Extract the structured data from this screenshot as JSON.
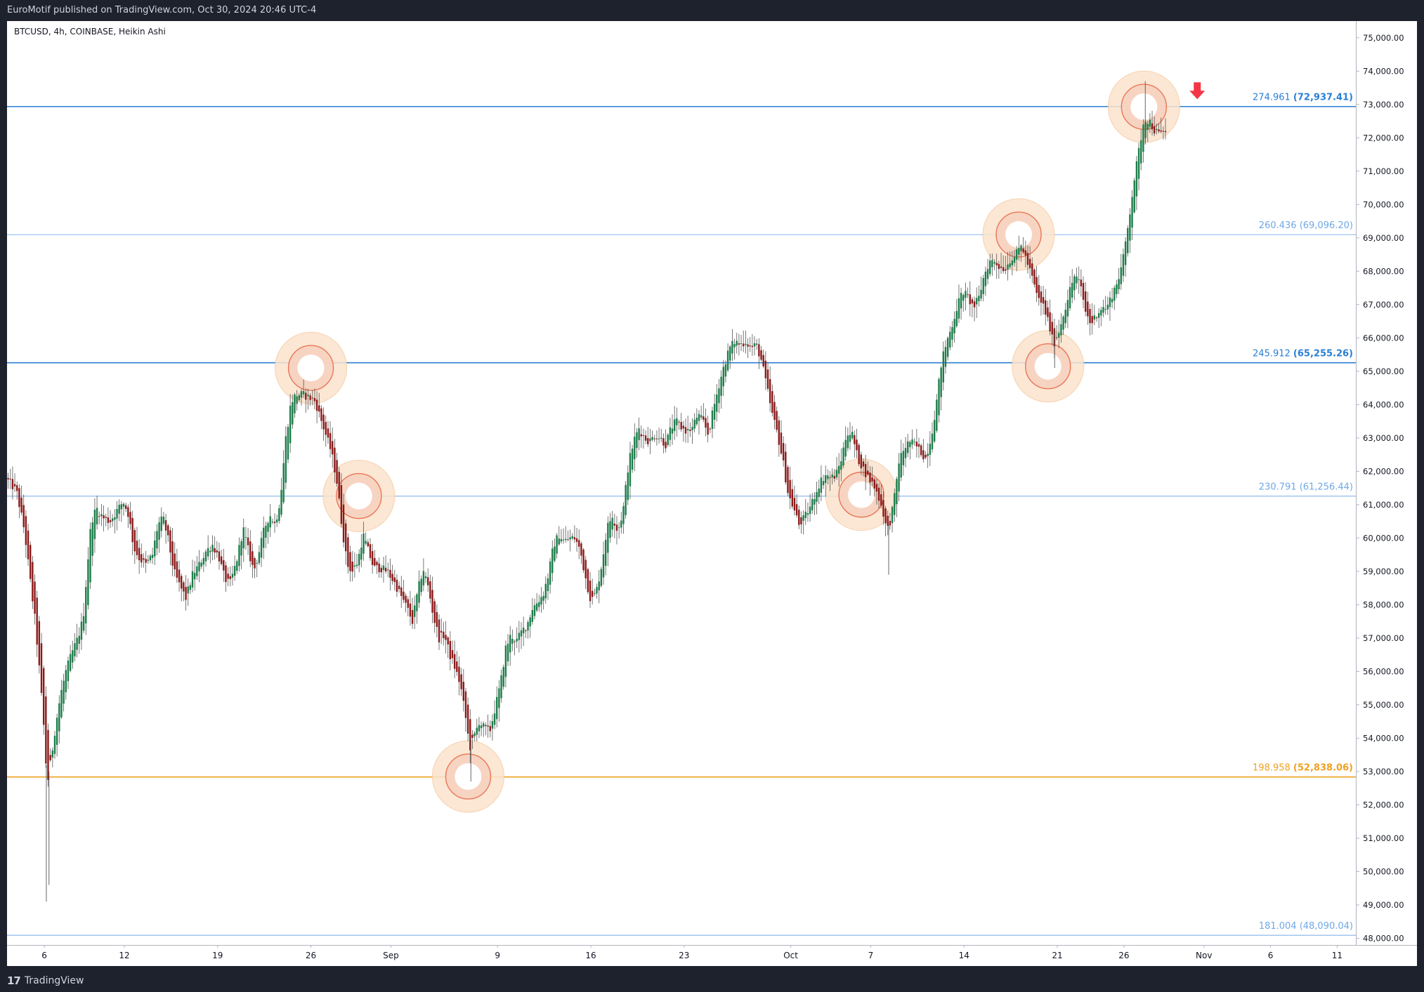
{
  "header": {
    "publish_line": "EuroMotif published on TradingView.com, Oct 30, 2024 20:46 UTC-4"
  },
  "symbol": {
    "title": "BTCUSD, 4h, COINBASE, Heikin Ashi"
  },
  "footer": {
    "logo_mark": "17",
    "logo_text": "TradingView"
  },
  "colors": {
    "up": "#26a69a",
    "up_body": "#1e7d4a",
    "down": "#8b1a1a",
    "fib_line": "#2a7fd4",
    "fib_light": "#6fa8e6",
    "orange": "#f0a020",
    "circle_outer": "#fbe3cd",
    "circle_ring": "#e86a4a"
  },
  "chart_data": {
    "type": "candlestick",
    "title": "BTCUSD, 4h, COINBASE, Heikin Ashi",
    "ylim": [
      47800,
      75500
    ],
    "y_ticks": [
      "48,000.00",
      "49,000.00",
      "50,000.00",
      "51,000.00",
      "52,000.00",
      "53,000.00",
      "54,000.00",
      "55,000.00",
      "56,000.00",
      "57,000.00",
      "58,000.00",
      "59,000.00",
      "60,000.00",
      "61,000.00",
      "62,000.00",
      "63,000.00",
      "64,000.00",
      "65,000.00",
      "66,000.00",
      "67,000.00",
      "68,000.00",
      "69,000.00",
      "70,000.00",
      "71,000.00",
      "72,000.00",
      "73,000.00",
      "74,000.00",
      "75,000.00"
    ],
    "x_ticks": [
      {
        "label": "6",
        "day": 6
      },
      {
        "label": "12",
        "day": 12
      },
      {
        "label": "19",
        "day": 19
      },
      {
        "label": "26",
        "day": 26
      },
      {
        "label": "Sep",
        "day": 32
      },
      {
        "label": "9",
        "day": 40
      },
      {
        "label": "16",
        "day": 47
      },
      {
        "label": "23",
        "day": 54
      },
      {
        "label": "Oct",
        "day": 62
      },
      {
        "label": "7",
        "day": 68
      },
      {
        "label": "14",
        "day": 75
      },
      {
        "label": "21",
        "day": 82
      },
      {
        "label": "26",
        "day": 87
      },
      {
        "label": "Nov",
        "day": 93
      },
      {
        "label": "6",
        "day": 98
      },
      {
        "label": "11",
        "day": 103
      }
    ],
    "xlim_days": [
      3.2,
      104.4
    ],
    "fib_levels": [
      {
        "ratio": "274.961",
        "price": 72937.41,
        "price_label": "(72,937.41)",
        "style": "strong",
        "color": "#2a7fd4"
      },
      {
        "ratio": "260.436",
        "price": 69096.2,
        "price_label": "(69,096.20)",
        "style": "light",
        "color": "#6fa8e6"
      },
      {
        "ratio": "245.912",
        "price": 65255.26,
        "price_label": "(65,255.26)",
        "style": "strong",
        "color": "#2a7fd4"
      },
      {
        "ratio": "230.791",
        "price": 61256.44,
        "price_label": "(61,256.44)",
        "style": "light",
        "color": "#6fa8e6"
      },
      {
        "ratio": "198.958",
        "price": 52838.06,
        "price_label": "(52,838.06)",
        "style": "strong",
        "color": "#f0a020"
      },
      {
        "ratio": "181.004",
        "price": 48090.04,
        "price_label": "(48,090.04)",
        "style": "light",
        "color": "#6fa8e6"
      }
    ],
    "markers": [
      {
        "day": 26.0,
        "price": 65100
      },
      {
        "day": 29.6,
        "price": 61260
      },
      {
        "day": 37.8,
        "price": 52850
      },
      {
        "day": 67.3,
        "price": 61300
      },
      {
        "day": 79.1,
        "price": 69100
      },
      {
        "day": 81.3,
        "price": 65150
      },
      {
        "day": 88.5,
        "price": 72930
      }
    ],
    "arrow": {
      "day": 92.5,
      "price": 73200,
      "direction": "down"
    },
    "path": [
      [
        3.2,
        61800
      ],
      [
        4.0,
        61400
      ],
      [
        4.6,
        60200
      ],
      [
        5.0,
        58800
      ],
      [
        5.4,
        57500
      ],
      [
        5.7,
        56100
      ],
      [
        6.0,
        54600
      ],
      [
        6.3,
        52600
      ],
      [
        6.6,
        53400
      ],
      [
        6.9,
        54300
      ],
      [
        7.3,
        55300
      ],
      [
        7.7,
        56000
      ],
      [
        8.1,
        56500
      ],
      [
        8.6,
        57000
      ],
      [
        9.0,
        57600
      ],
      [
        9.3,
        59100
      ],
      [
        9.6,
        60500
      ],
      [
        10.0,
        60900
      ],
      [
        10.5,
        60600
      ],
      [
        11.0,
        60500
      ],
      [
        11.5,
        60800
      ],
      [
        12.0,
        61100
      ],
      [
        12.4,
        60700
      ],
      [
        12.8,
        59700
      ],
      [
        13.2,
        59400
      ],
      [
        13.7,
        59200
      ],
      [
        14.2,
        59500
      ],
      [
        14.6,
        60400
      ],
      [
        15.0,
        60600
      ],
      [
        15.4,
        59900
      ],
      [
        15.8,
        59000
      ],
      [
        16.2,
        58600
      ],
      [
        16.7,
        58200
      ],
      [
        17.2,
        58900
      ],
      [
        17.7,
        59200
      ],
      [
        18.2,
        59600
      ],
      [
        18.7,
        59800
      ],
      [
        19.2,
        59400
      ],
      [
        19.6,
        58800
      ],
      [
        20.0,
        58600
      ],
      [
        20.5,
        59300
      ],
      [
        21.0,
        60300
      ],
      [
        21.4,
        59600
      ],
      [
        21.8,
        59000
      ],
      [
        22.2,
        59600
      ],
      [
        22.6,
        60300
      ],
      [
        23.0,
        60700
      ],
      [
        23.4,
        60400
      ],
      [
        23.8,
        61200
      ],
      [
        24.2,
        63000
      ],
      [
        24.6,
        64100
      ],
      [
        25.0,
        64300
      ],
      [
        25.5,
        64300
      ],
      [
        26.0,
        64200
      ],
      [
        26.4,
        64100
      ],
      [
        26.8,
        63600
      ],
      [
        27.2,
        63100
      ],
      [
        27.6,
        62600
      ],
      [
        28.0,
        61800
      ],
      [
        28.4,
        60400
      ],
      [
        28.8,
        59200
      ],
      [
        29.2,
        59000
      ],
      [
        29.6,
        59300
      ],
      [
        30.0,
        60100
      ],
      [
        30.4,
        59600
      ],
      [
        30.8,
        59100
      ],
      [
        31.3,
        59100
      ],
      [
        31.8,
        59000
      ],
      [
        32.3,
        58700
      ],
      [
        32.8,
        58300
      ],
      [
        33.3,
        57900
      ],
      [
        33.7,
        57500
      ],
      [
        34.1,
        58400
      ],
      [
        34.5,
        59100
      ],
      [
        34.9,
        58500
      ],
      [
        35.3,
        57600
      ],
      [
        35.7,
        57000
      ],
      [
        36.1,
        57100
      ],
      [
        36.5,
        56500
      ],
      [
        36.9,
        56100
      ],
      [
        37.3,
        55600
      ],
      [
        37.7,
        54600
      ],
      [
        38.0,
        53700
      ],
      [
        38.3,
        54000
      ],
      [
        38.7,
        54500
      ],
      [
        39.1,
        54300
      ],
      [
        39.5,
        54200
      ],
      [
        39.9,
        54900
      ],
      [
        40.3,
        55600
      ],
      [
        40.7,
        56700
      ],
      [
        41.1,
        57100
      ],
      [
        41.5,
        56900
      ],
      [
        41.9,
        57200
      ],
      [
        42.3,
        57400
      ],
      [
        42.7,
        57900
      ],
      [
        43.1,
        58100
      ],
      [
        43.5,
        58300
      ],
      [
        43.9,
        58900
      ],
      [
        44.3,
        59800
      ],
      [
        44.7,
        60100
      ],
      [
        45.1,
        59900
      ],
      [
        45.5,
        60000
      ],
      [
        45.9,
        60000
      ],
      [
        46.3,
        59600
      ],
      [
        46.7,
        58800
      ],
      [
        47.1,
        58100
      ],
      [
        47.5,
        58400
      ],
      [
        47.9,
        59200
      ],
      [
        48.3,
        60300
      ],
      [
        48.7,
        60700
      ],
      [
        49.1,
        60200
      ],
      [
        49.5,
        60800
      ],
      [
        49.9,
        62200
      ],
      [
        50.3,
        62900
      ],
      [
        50.7,
        63300
      ],
      [
        51.1,
        63000
      ],
      [
        51.5,
        62900
      ],
      [
        51.9,
        63100
      ],
      [
        52.3,
        63000
      ],
      [
        52.7,
        62800
      ],
      [
        53.1,
        63300
      ],
      [
        53.5,
        63500
      ],
      [
        53.9,
        63300
      ],
      [
        54.3,
        63200
      ],
      [
        54.7,
        63300
      ],
      [
        55.1,
        63700
      ],
      [
        55.5,
        63500
      ],
      [
        55.9,
        63100
      ],
      [
        56.3,
        63900
      ],
      [
        56.7,
        64600
      ],
      [
        57.1,
        65200
      ],
      [
        57.5,
        65700
      ],
      [
        57.9,
        65900
      ],
      [
        58.3,
        65800
      ],
      [
        58.7,
        65900
      ],
      [
        59.1,
        65700
      ],
      [
        59.5,
        65800
      ],
      [
        59.9,
        65300
      ],
      [
        60.3,
        64500
      ],
      [
        60.7,
        63700
      ],
      [
        61.1,
        63100
      ],
      [
        61.5,
        62300
      ],
      [
        61.9,
        61300
      ],
      [
        62.3,
        60900
      ],
      [
        62.7,
        60400
      ],
      [
        63.1,
        60600
      ],
      [
        63.5,
        60900
      ],
      [
        63.9,
        61300
      ],
      [
        64.3,
        61700
      ],
      [
        64.7,
        61900
      ],
      [
        65.1,
        61800
      ],
      [
        65.5,
        61900
      ],
      [
        65.9,
        62400
      ],
      [
        66.3,
        63200
      ],
      [
        66.7,
        63100
      ],
      [
        67.1,
        62400
      ],
      [
        67.5,
        62100
      ],
      [
        67.9,
        61800
      ],
      [
        68.3,
        61600
      ],
      [
        68.7,
        61200
      ],
      [
        69.0,
        60800
      ],
      [
        69.3,
        60200
      ],
      [
        69.6,
        60600
      ],
      [
        69.9,
        61300
      ],
      [
        70.2,
        62300
      ],
      [
        70.6,
        62700
      ],
      [
        71.0,
        62900
      ],
      [
        71.4,
        62800
      ],
      [
        71.8,
        62600
      ],
      [
        72.2,
        62400
      ],
      [
        72.6,
        63000
      ],
      [
        73.0,
        64000
      ],
      [
        73.4,
        65300
      ],
      [
        73.8,
        65900
      ],
      [
        74.2,
        66400
      ],
      [
        74.6,
        67000
      ],
      [
        75.0,
        67400
      ],
      [
        75.4,
        67200
      ],
      [
        75.8,
        66900
      ],
      [
        76.2,
        67200
      ],
      [
        76.6,
        67900
      ],
      [
        77.0,
        68300
      ],
      [
        77.4,
        68300
      ],
      [
        77.8,
        68100
      ],
      [
        78.2,
        68100
      ],
      [
        78.6,
        68400
      ],
      [
        79.0,
        68500
      ],
      [
        79.4,
        68800
      ],
      [
        79.8,
        68300
      ],
      [
        80.2,
        67800
      ],
      [
        80.6,
        67200
      ],
      [
        81.0,
        67000
      ],
      [
        81.4,
        66500
      ],
      [
        81.8,
        65800
      ],
      [
        82.2,
        66200
      ],
      [
        82.6,
        66800
      ],
      [
        83.0,
        67400
      ],
      [
        83.4,
        67900
      ],
      [
        83.8,
        67600
      ],
      [
        84.2,
        66800
      ],
      [
        84.6,
        66400
      ],
      [
        85.0,
        66700
      ],
      [
        85.4,
        66900
      ],
      [
        85.8,
        66900
      ],
      [
        86.2,
        67300
      ],
      [
        86.6,
        67700
      ],
      [
        87.0,
        68300
      ],
      [
        87.4,
        69400
      ],
      [
        87.8,
        70600
      ],
      [
        88.2,
        71600
      ],
      [
        88.6,
        72600
      ],
      [
        89.0,
        72500
      ],
      [
        89.4,
        72200
      ],
      [
        89.8,
        72100
      ],
      [
        90.1,
        72200
      ]
    ]
  }
}
